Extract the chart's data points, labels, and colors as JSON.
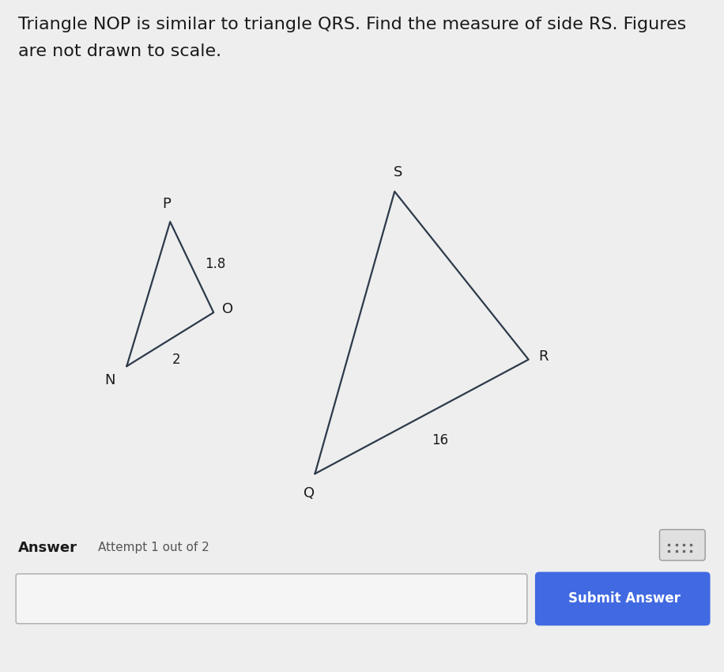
{
  "title_line1": "Triangle NOP is similar to triangle QRS. Find the measure of side RS. Figures",
  "title_line2": "are not drawn to scale.",
  "title_fontsize": 16,
  "bg_color": "#d8d8d8",
  "content_bg": "#e8e8e8",
  "tri_color": "#2d3a4a",
  "triangle1": {
    "N": [
      0.175,
      0.455
    ],
    "O": [
      0.295,
      0.535
    ],
    "P": [
      0.235,
      0.67
    ],
    "label_N": "N",
    "label_O": "O",
    "label_P": "P",
    "side_PO_label": "1.8",
    "side_NO_label": "2"
  },
  "triangle2": {
    "Q": [
      0.435,
      0.295
    ],
    "R": [
      0.73,
      0.465
    ],
    "S": [
      0.545,
      0.715
    ],
    "label_Q": "Q",
    "label_R": "R",
    "label_S": "S",
    "side_QR_label": "16"
  },
  "answer_label": "Answer",
  "attempt_label": "Attempt 1 out of 2",
  "submit_button_text": "Submit Answer",
  "submit_button_color": "#4169e1",
  "input_box_color": "#f5f5f5",
  "keyboard_icon_color": "#555555"
}
